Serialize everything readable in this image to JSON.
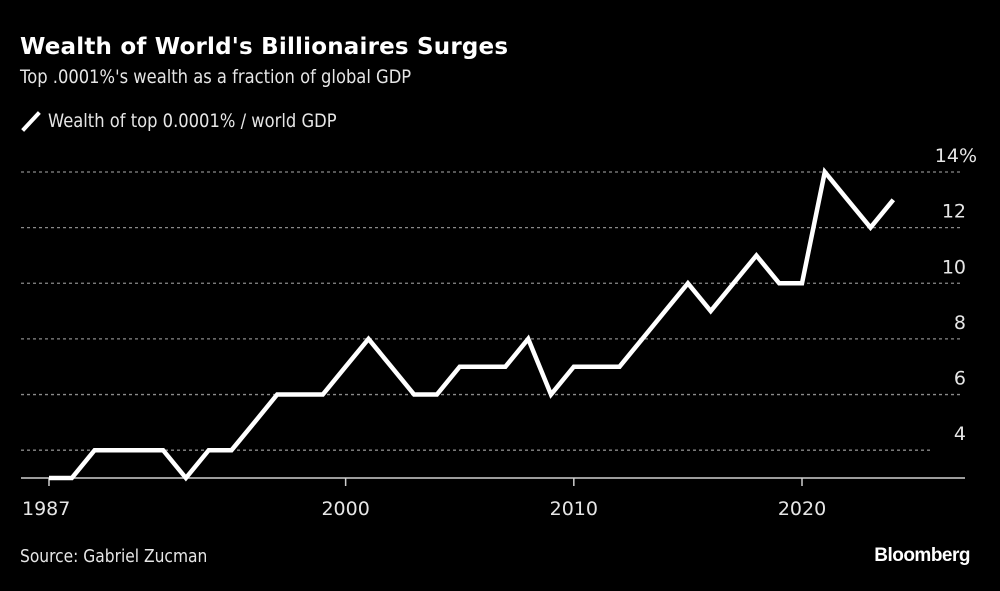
{
  "chart_data": {
    "type": "line",
    "title": "Wealth of World's Billionaires Surges",
    "subtitle": "Top .0001%'s wealth as a fraction of global GDP",
    "xlabel": "",
    "ylabel": "",
    "x": [
      1987,
      1988,
      1989,
      1990,
      1991,
      1992,
      1993,
      1994,
      1995,
      1996,
      1997,
      1998,
      1999,
      2000,
      2001,
      2002,
      2003,
      2004,
      2005,
      2006,
      2007,
      2008,
      2009,
      2010,
      2011,
      2012,
      2013,
      2014,
      2015,
      2016,
      2017,
      2018,
      2019,
      2020,
      2021,
      2022,
      2023,
      2024
    ],
    "series": [
      {
        "name": "Wealth of top 0.0001% / world GDP",
        "color": "#ffffff",
        "values": [
          3,
          3,
          4,
          4,
          4,
          4,
          3,
          4,
          4,
          5,
          6,
          6,
          6,
          7,
          8,
          7,
          6,
          6,
          7,
          7,
          7,
          8,
          6,
          7,
          7,
          7,
          8,
          9,
          10,
          9,
          10,
          11,
          10,
          10,
          14,
          13,
          12,
          13
        ]
      }
    ],
    "xlim": [
      1987,
      2026
    ],
    "ylim": [
      3,
      14
    ],
    "x_ticks": [
      1987,
      2000,
      2010,
      2020
    ],
    "x_tick_labels": [
      "1987",
      "2000",
      "2010",
      "2020"
    ],
    "y_ticks": [
      4,
      6,
      8,
      10,
      12,
      14
    ],
    "y_tick_labels": [
      "4",
      "6",
      "8",
      "10",
      "12",
      "14%"
    ],
    "grid": true,
    "legend_position": "top-left"
  },
  "legend": {
    "label": "Wealth of top 0.0001% / world GDP"
  },
  "footer": {
    "source": "Source: Gabriel Zucman",
    "brand": "Bloomberg"
  },
  "colors": {
    "background": "#000000",
    "line": "#ffffff",
    "grid": "#8a8a8a",
    "axis": "#cfcfcf"
  }
}
